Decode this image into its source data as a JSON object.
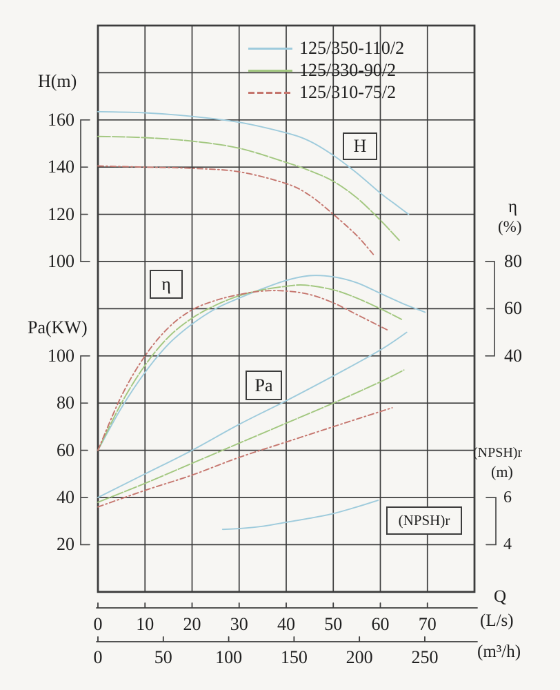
{
  "colors": {
    "blue": "#9ecbdc",
    "green": "#a2c77f",
    "red": "#c5756d",
    "grid": "#3c3c3c",
    "bracket": "#4a4a4a",
    "text": "#1f1f1f",
    "background": "#f7f6f3"
  },
  "legend": {
    "note": "legend labels bound from chart_data.series 0..2"
  },
  "chart_data": {
    "type": "line",
    "title": "",
    "description": "Centrifugal pump performance curves: head H, efficiency eta, shaft power Pa and (NPSH)r versus flow rate Q for three pump models",
    "x_axis": {
      "title": "Q",
      "primary_unit": "(L/s)",
      "secondary_unit": "(m³/h)",
      "lps_ticks": [
        0,
        10,
        20,
        30,
        40,
        50,
        60,
        70
      ],
      "m3h_ticks": [
        0,
        50,
        100,
        150,
        200,
        250
      ],
      "range_lps": [
        0,
        80
      ]
    },
    "y_axes": {
      "h": {
        "title": "H(m)",
        "ticks": [
          160,
          140,
          120,
          100
        ],
        "range": [
          100,
          160
        ]
      },
      "pa": {
        "title": "Pa(KW)",
        "ticks": [
          100,
          80,
          60,
          40,
          20
        ],
        "range": [
          20,
          100
        ]
      },
      "eta": {
        "title": "η",
        "unit": "(%)",
        "ticks": [
          80,
          60,
          40
        ],
        "range": [
          40,
          80
        ]
      },
      "npsh": {
        "title": "(NPSH)r",
        "unit": "(m)",
        "ticks": [
          6,
          4
        ],
        "range": [
          4,
          6
        ]
      }
    },
    "annotations": {
      "h_box": "H",
      "eta_box": "η",
      "pa_box": "Pa",
      "npsh_box": "(NPSH)r"
    },
    "series": [
      {
        "name": "125/350-110/2",
        "curve": "H",
        "axis": "H",
        "color": "blue",
        "dash": "solid",
        "points": [
          [
            0,
            163.5
          ],
          [
            10,
            163
          ],
          [
            20,
            161.5
          ],
          [
            30,
            159
          ],
          [
            40,
            154.5
          ],
          [
            45,
            151
          ],
          [
            50,
            145
          ],
          [
            55,
            137.5
          ],
          [
            60,
            129
          ],
          [
            63,
            124.5
          ],
          [
            66,
            120
          ]
        ]
      },
      {
        "name": "125/330-90/2",
        "curve": "H",
        "axis": "H",
        "color": "green",
        "dash": "long",
        "points": [
          [
            0,
            153
          ],
          [
            10,
            152.5
          ],
          [
            20,
            151
          ],
          [
            30,
            148
          ],
          [
            40,
            142
          ],
          [
            45,
            138.5
          ],
          [
            50,
            134
          ],
          [
            55,
            127
          ],
          [
            60,
            117.5
          ],
          [
            64,
            109
          ]
        ]
      },
      {
        "name": "125/310-75/2",
        "curve": "H",
        "axis": "H",
        "color": "red",
        "dash": "dashdot",
        "points": [
          [
            0,
            140.5
          ],
          [
            10,
            140
          ],
          [
            20,
            139.5
          ],
          [
            30,
            138
          ],
          [
            40,
            133
          ],
          [
            45,
            128
          ],
          [
            50,
            120
          ],
          [
            55,
            111
          ],
          [
            58.5,
            103
          ]
        ]
      },
      {
        "name": "125/350-110/2",
        "curve": "eta",
        "axis": "eta",
        "color": "blue",
        "dash": "solid",
        "points": [
          [
            0,
            0
          ],
          [
            5,
            18
          ],
          [
            10,
            33
          ],
          [
            15,
            45
          ],
          [
            20,
            53.5
          ],
          [
            25,
            60
          ],
          [
            30,
            64.5
          ],
          [
            35,
            68.5
          ],
          [
            40,
            72
          ],
          [
            45,
            74
          ],
          [
            50,
            73.5
          ],
          [
            55,
            71
          ],
          [
            60,
            66.5
          ],
          [
            65,
            62
          ],
          [
            69.5,
            58.5
          ]
        ]
      },
      {
        "name": "125/330-90/2",
        "curve": "eta",
        "axis": "eta",
        "color": "green",
        "dash": "long",
        "points": [
          [
            0,
            0
          ],
          [
            5,
            20
          ],
          [
            10,
            36
          ],
          [
            15,
            48
          ],
          [
            20,
            56
          ],
          [
            25,
            61.5
          ],
          [
            30,
            65.5
          ],
          [
            35,
            68
          ],
          [
            40,
            69.5
          ],
          [
            44,
            70
          ],
          [
            50,
            68
          ],
          [
            55,
            64.5
          ],
          [
            60,
            60
          ],
          [
            64.5,
            55.5
          ]
        ]
      },
      {
        "name": "125/310-75/2",
        "curve": "eta",
        "axis": "eta",
        "color": "red",
        "dash": "dashdot",
        "points": [
          [
            0,
            0
          ],
          [
            5,
            23
          ],
          [
            10,
            40
          ],
          [
            15,
            52
          ],
          [
            20,
            59.5
          ],
          [
            25,
            63.5
          ],
          [
            30,
            66
          ],
          [
            35,
            67.5
          ],
          [
            40,
            67.5
          ],
          [
            45,
            66
          ],
          [
            50,
            62.5
          ],
          [
            55,
            57.5
          ],
          [
            61.5,
            51
          ]
        ]
      },
      {
        "name": "125/350-110/2",
        "curve": "Pa",
        "axis": "Pa",
        "color": "blue",
        "dash": "solid",
        "points": [
          [
            0,
            40
          ],
          [
            10,
            50
          ],
          [
            20,
            60
          ],
          [
            30,
            71
          ],
          [
            40,
            81
          ],
          [
            50,
            91.5
          ],
          [
            60,
            102.5
          ],
          [
            65.6,
            110
          ]
        ]
      },
      {
        "name": "125/330-90/2",
        "curve": "Pa",
        "axis": "Pa",
        "color": "green",
        "dash": "long",
        "points": [
          [
            0,
            38
          ],
          [
            10,
            46
          ],
          [
            20,
            54.5
          ],
          [
            30,
            63
          ],
          [
            40,
            71.5
          ],
          [
            50,
            80
          ],
          [
            60,
            89
          ],
          [
            65,
            94
          ]
        ]
      },
      {
        "name": "125/310-75/2",
        "curve": "Pa",
        "axis": "Pa",
        "color": "red",
        "dash": "dashdot",
        "points": [
          [
            0,
            36
          ],
          [
            10,
            43
          ],
          [
            20,
            49.5
          ],
          [
            30,
            57
          ],
          [
            40,
            63.5
          ],
          [
            50,
            70
          ],
          [
            57,
            74.5
          ],
          [
            62.5,
            78
          ]
        ]
      },
      {
        "name": "125/350-110/2",
        "curve": "NPSHr",
        "axis": "NPSH",
        "color": "blue",
        "dash": "solid",
        "points": [
          [
            26.5,
            4.65
          ],
          [
            30,
            4.68
          ],
          [
            35,
            4.78
          ],
          [
            40,
            4.95
          ],
          [
            45,
            5.12
          ],
          [
            50,
            5.32
          ],
          [
            55,
            5.6
          ],
          [
            59.5,
            5.88
          ]
        ]
      }
    ],
    "grid": "on",
    "legend_position": "top-center"
  }
}
